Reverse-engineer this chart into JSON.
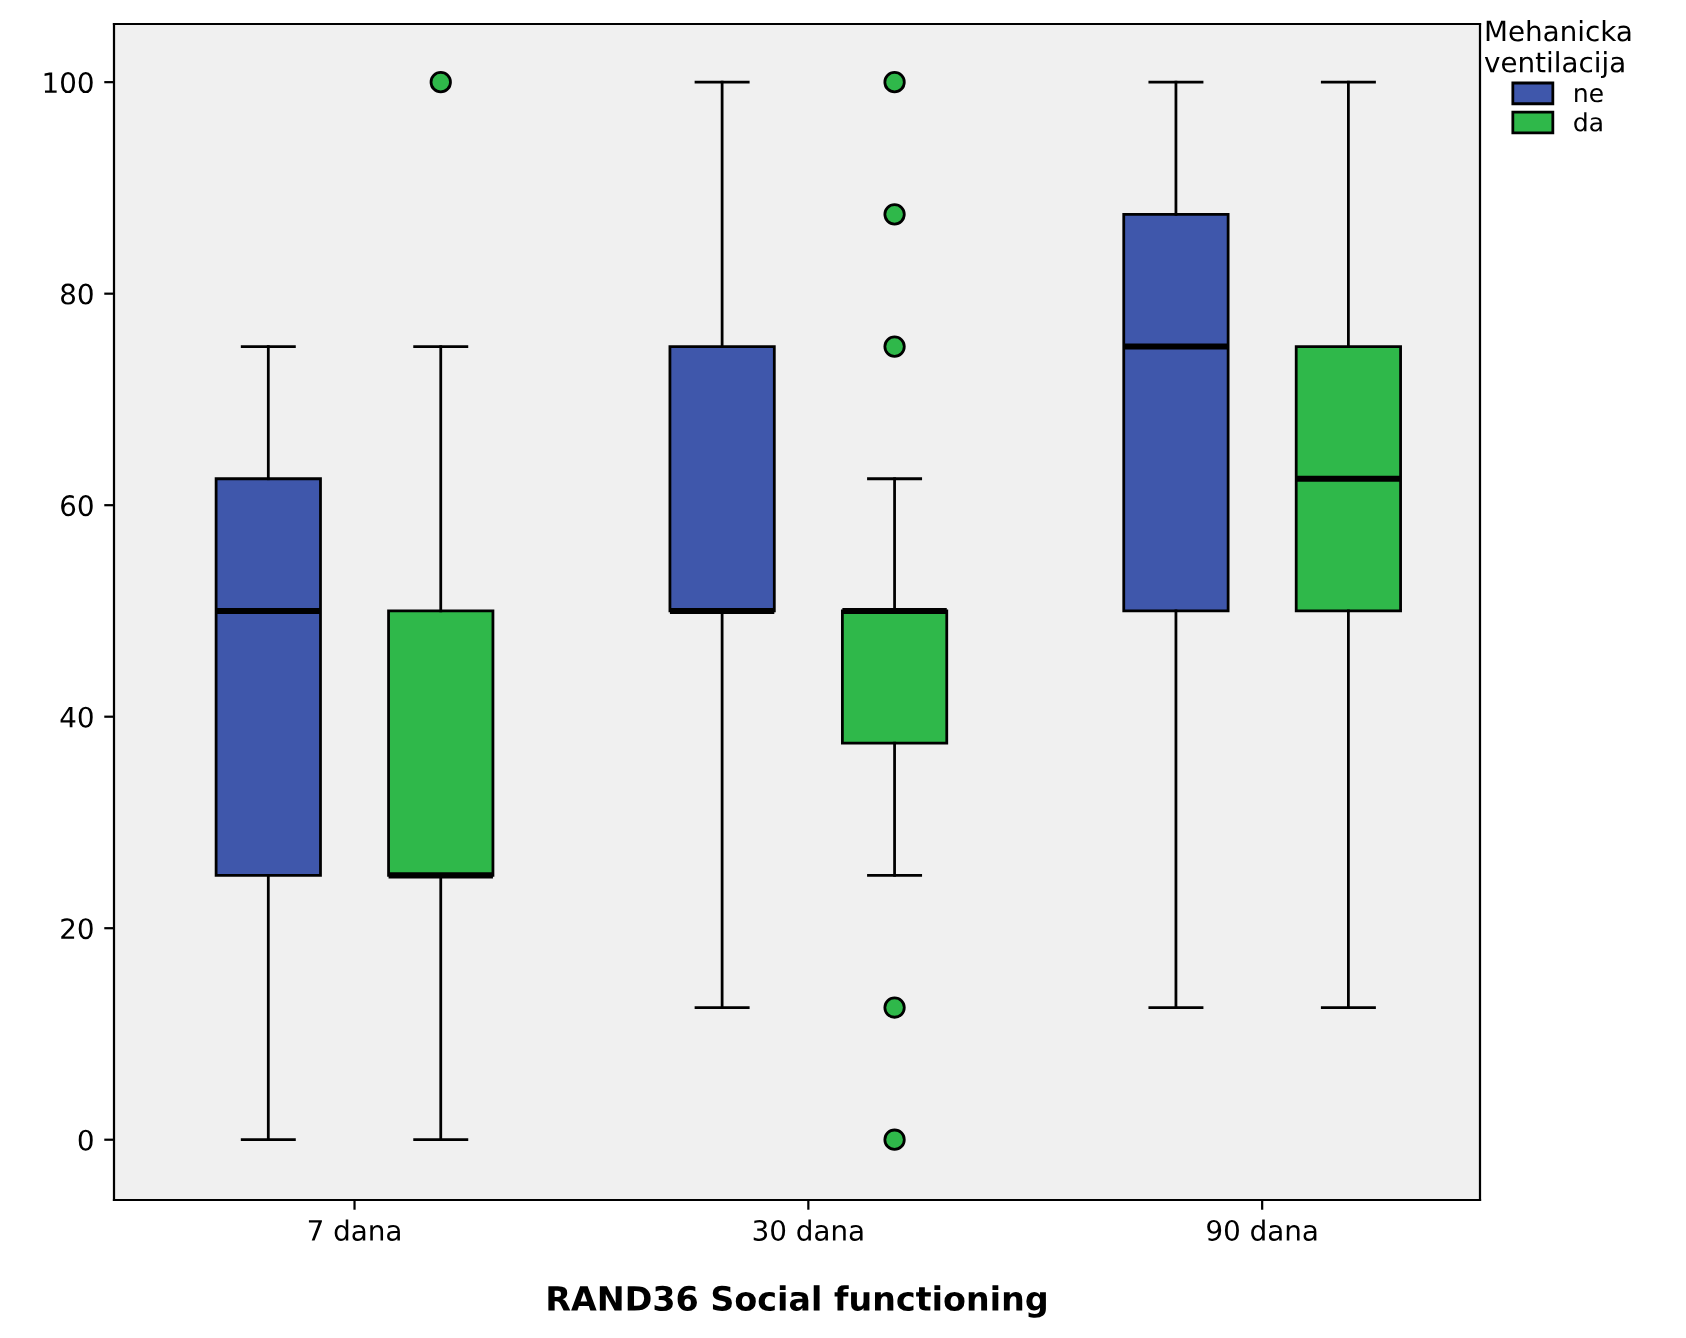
{
  "chart_data": {
    "type": "box",
    "xlabel": "RAND36 Social functioning",
    "legend_title": "Mehanicka\nventilacija",
    "legend": "top right",
    "grid": false,
    "categories": [
      "7 dana",
      "30 dana",
      "90 dana"
    ],
    "ylim": [
      -5.7,
      105.5
    ],
    "yticks": [
      0,
      20,
      40,
      60,
      80,
      100
    ],
    "series": [
      {
        "name": "ne",
        "color": "#3f57ab",
        "boxes": [
          {
            "low": 0,
            "q1": 25,
            "median": 50,
            "q3": 62.5,
            "high": 75
          },
          {
            "low": 12.5,
            "q1": 50,
            "median": 50,
            "q3": 75,
            "high": 100
          },
          {
            "low": 12.5,
            "q1": 50,
            "median": 75,
            "q3": 87.5,
            "high": 100
          }
        ]
      },
      {
        "name": "da",
        "color": "#2fb84a",
        "boxes": [
          {
            "low": 0,
            "q1": 25,
            "median": 25,
            "q3": 50,
            "high": 75,
            "outliers": [
              100
            ]
          },
          {
            "low": 25,
            "q1": 37.5,
            "median": 50,
            "q3": 50,
            "high": 62.5,
            "outliers": [
              0,
              12.5,
              75,
              87.5,
              100
            ]
          },
          {
            "low": 12.5,
            "q1": 50,
            "median": 62.5,
            "q3": 75,
            "high": 100
          }
        ]
      }
    ]
  }
}
